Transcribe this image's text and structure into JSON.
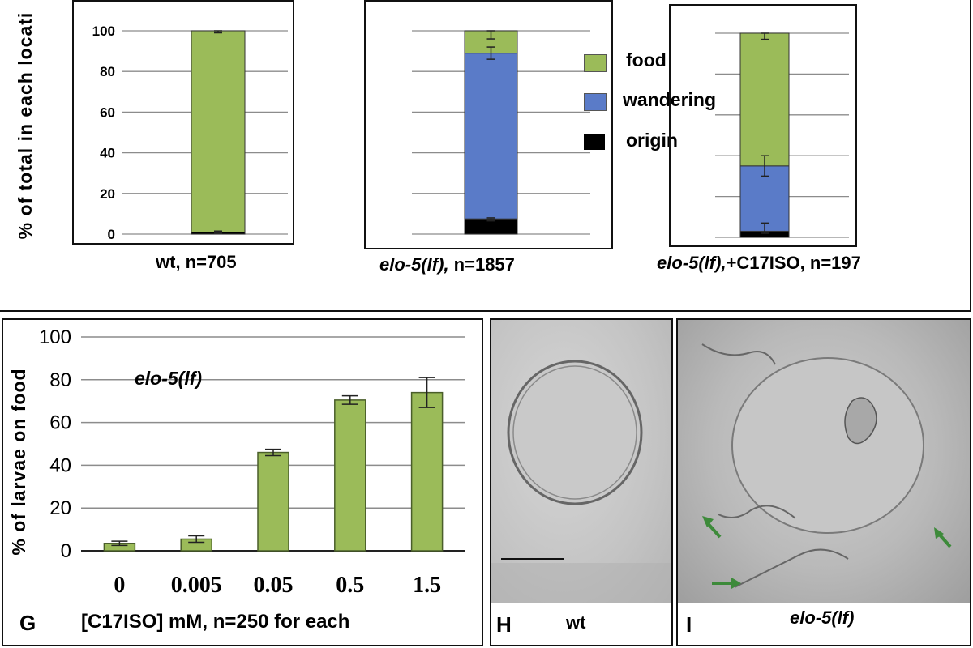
{
  "top_panel": {
    "ylabel": "% of total in each locati",
    "legend": [
      {
        "label": "food",
        "color": "#9bbb59"
      },
      {
        "label": "wandering",
        "color": "#5a7bc8"
      },
      {
        "label": "origin",
        "color": "#000000"
      }
    ]
  },
  "bottom_chart": {
    "ylabel": "% of larvae on food",
    "inset_label": "elo-5(lf)",
    "xlabel": "[C17ISO] mM, n=250 for each",
    "panel_letter": "G"
  },
  "image_panels": {
    "h": {
      "letter": "H",
      "caption": "wt"
    },
    "i": {
      "letter": "I",
      "caption": "elo-5(lf)"
    }
  },
  "colors": {
    "food": "#9bbb59",
    "wandering": "#5a7bc8",
    "origin": "#000000",
    "axis": "#000000",
    "grid": "#8c8c8c",
    "arrow": "#3d8a3a"
  },
  "chart_data": [
    {
      "type": "bar",
      "stacked": true,
      "title": "",
      "caption_italic": "",
      "caption_rest": "wt,  n=705",
      "categories": [
        "wt"
      ],
      "series": [
        {
          "name": "origin",
          "values": [
            1
          ]
        },
        {
          "name": "wandering",
          "values": [
            0
          ]
        },
        {
          "name": "food",
          "values": [
            99
          ]
        }
      ],
      "error_tops": [
        1,
        null,
        99.5
      ],
      "ylim": [
        0,
        100
      ],
      "yticks": [
        0,
        20,
        40,
        60,
        80,
        100
      ],
      "grid": true,
      "ylabel": "% of total in each locati"
    },
    {
      "type": "bar",
      "stacked": true,
      "caption_italic": "elo-5(lf),",
      "caption_rest": " n=1857",
      "categories": [
        "elo-5(lf)"
      ],
      "series": [
        {
          "name": "origin",
          "values": [
            7.5
          ]
        },
        {
          "name": "wandering",
          "values": [
            81.5
          ]
        },
        {
          "name": "food",
          "values": [
            11
          ]
        }
      ],
      "error_bars": [
        [
          6.5,
          8
        ],
        [
          86,
          92
        ],
        [
          96,
          100
        ]
      ],
      "ylim": [
        0,
        100
      ],
      "grid": true,
      "legend_position": "right"
    },
    {
      "type": "bar",
      "stacked": true,
      "caption_italic": "elo-5(lf),",
      "caption_rest": "+C17ISO,  n=197",
      "categories": [
        "elo-5(lf),+C17ISO"
      ],
      "series": [
        {
          "name": "origin",
          "values": [
            3
          ]
        },
        {
          "name": "wandering",
          "values": [
            32
          ]
        },
        {
          "name": "food",
          "values": [
            65
          ]
        }
      ],
      "error_bars": [
        [
          2,
          7
        ],
        [
          30,
          40
        ],
        [
          97,
          100
        ]
      ],
      "ylim": [
        0,
        100
      ],
      "grid": true
    },
    {
      "type": "bar",
      "categories": [
        "0",
        "0.005",
        "0.05",
        "0.5",
        "1.5"
      ],
      "values": [
        3.5,
        5.5,
        46,
        70.5,
        74
      ],
      "errors": [
        1,
        1.5,
        1.5,
        2,
        7
      ],
      "ylim": [
        0,
        100
      ],
      "yticks": [
        0,
        20,
        40,
        60,
        80,
        100
      ],
      "xlabel": "[C17ISO] mM, n=250 for each",
      "ylabel": "% of larvae on food",
      "grid": true,
      "color": "#9bbb59"
    }
  ]
}
